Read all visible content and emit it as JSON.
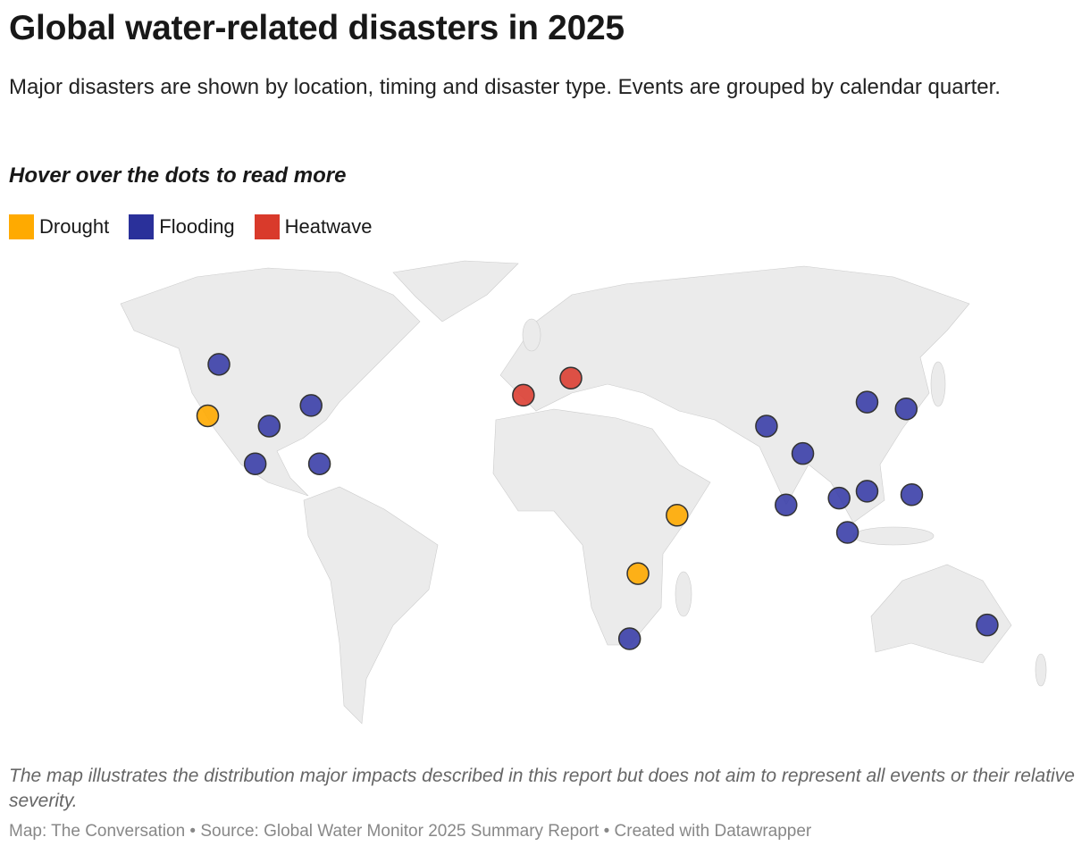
{
  "title": "Global water-related disasters in 2025",
  "subtitle": "Major disasters are shown by location, timing and disaster type. Events are grouped by calendar quarter.",
  "hover_hint": "Hover over the dots to read more",
  "legend": [
    {
      "label": "Drought",
      "color": "#FFAA00"
    },
    {
      "label": "Flooding",
      "color": "#2A309A"
    },
    {
      "label": "Heatwave",
      "color": "#D93A2B"
    }
  ],
  "colors": {
    "Drought": "#FFAA00",
    "Flooding": "#3B3FA8",
    "Heatwave": "#DB3F33",
    "land": "#EBEBEB"
  },
  "markers": [
    {
      "type": "Flooding",
      "lon": -122,
      "lat": 49
    },
    {
      "type": "Drought",
      "lon": -126,
      "lat": 34
    },
    {
      "type": "Flooding",
      "lon": -104,
      "lat": 31
    },
    {
      "type": "Flooding",
      "lon": -89,
      "lat": 37
    },
    {
      "type": "Flooding",
      "lon": -109,
      "lat": 20
    },
    {
      "type": "Flooding",
      "lon": -86,
      "lat": 20
    },
    {
      "type": "Heatwave",
      "lon": -13,
      "lat": 40
    },
    {
      "type": "Heatwave",
      "lon": 4,
      "lat": 45
    },
    {
      "type": "Drought",
      "lon": 42,
      "lat": 5
    },
    {
      "type": "Drought",
      "lon": 28,
      "lat": -12
    },
    {
      "type": "Flooding",
      "lon": 25,
      "lat": -31
    },
    {
      "type": "Flooding",
      "lon": 74,
      "lat": 31
    },
    {
      "type": "Flooding",
      "lon": 87,
      "lat": 23
    },
    {
      "type": "Flooding",
      "lon": 81,
      "lat": 8
    },
    {
      "type": "Flooding",
      "lon": 100,
      "lat": 10
    },
    {
      "type": "Flooding",
      "lon": 110,
      "lat": 12
    },
    {
      "type": "Flooding",
      "lon": 103,
      "lat": 0
    },
    {
      "type": "Flooding",
      "lon": 126,
      "lat": 11
    },
    {
      "type": "Flooding",
      "lon": 110,
      "lat": 38
    },
    {
      "type": "Flooding",
      "lon": 124,
      "lat": 36
    },
    {
      "type": "Flooding",
      "lon": 153,
      "lat": -27
    }
  ],
  "note": "The map illustrates the distribution major impacts described in this report but does not aim to represent all events or their relative severity.",
  "credit": "Map: The Conversation • Source: Global Water Monitor 2025 Summary Report • Created with Datawrapper"
}
